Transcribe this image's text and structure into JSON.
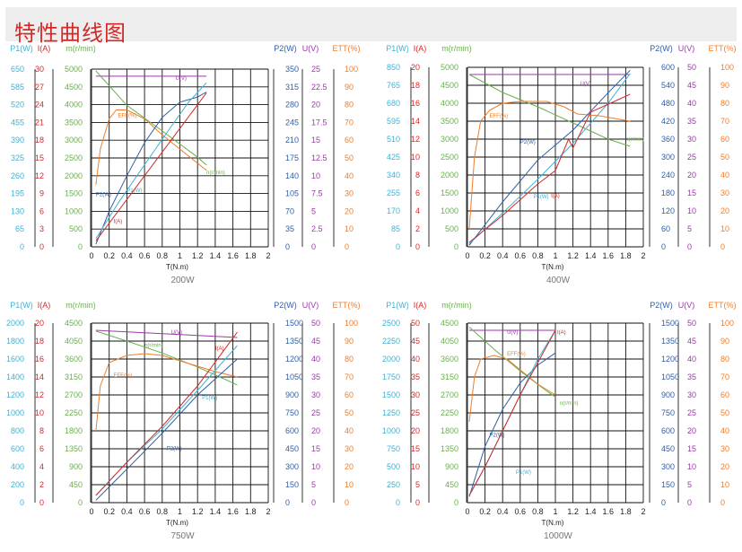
{
  "page": {
    "title": "特性曲线图"
  },
  "colors": {
    "P1": "#3fb3d4",
    "I": "#d42a2a",
    "N": "#6ab04c",
    "P2": "#2f5fa8",
    "U": "#9b3aa8",
    "EFF": "#ef7d2a",
    "grid": "#111111",
    "title": "#d12a2a"
  },
  "chart_data": [
    {
      "type": "line",
      "caption": "200W",
      "xlabel": "T(N.m)",
      "x_ticks": [
        "0",
        "0.2",
        "0.4",
        "0.6",
        "0.8",
        "1",
        "1.2",
        "1.4",
        "1.6",
        "1.8",
        "2"
      ],
      "xlim": [
        0,
        2
      ],
      "axes": [
        {
          "key": "P1",
          "label": "P1(W)",
          "ticks": [
            "650",
            "585",
            "520",
            "455",
            "390",
            "325",
            "260",
            "195",
            "130",
            "65",
            "0"
          ],
          "max": 650
        },
        {
          "key": "I",
          "label": "I(A)",
          "ticks": [
            "30",
            "27",
            "24",
            "21",
            "18",
            "15",
            "12",
            "9",
            "6",
            "3",
            "0"
          ],
          "max": 30
        },
        {
          "key": "N",
          "label": "m(r/min)",
          "ticks": [
            "5000",
            "4500",
            "4000",
            "3500",
            "3000",
            "2500",
            "2000",
            "1500",
            "1000",
            "500",
            "0"
          ],
          "max": 5000
        },
        {
          "key": "P2",
          "label": "P2(W)",
          "ticks": [
            "350",
            "315",
            "280",
            "245",
            "210",
            "175",
            "140",
            "105",
            "70",
            "35",
            "0"
          ],
          "max": 350
        },
        {
          "key": "U",
          "label": "U(V)",
          "ticks": [
            "25",
            "22.5",
            "20",
            "17.5",
            "15",
            "12.5",
            "10",
            "7.5",
            "5",
            "2.5",
            "0"
          ],
          "max": 25
        },
        {
          "key": "EFF",
          "label": "ETT(%)",
          "ticks": [
            "100",
            "90",
            "80",
            "70",
            "60",
            "50",
            "40",
            "30",
            "20",
            "10",
            "0"
          ],
          "max": 100
        }
      ],
      "series": [
        {
          "name": "U(V)",
          "axis": "U",
          "label_at": [
            0.95,
            23.5
          ],
          "x": [
            0.05,
            1.3
          ],
          "y": [
            24,
            24
          ]
        },
        {
          "name": "n(r/min)",
          "axis": "N",
          "label_at": [
            1.3,
            2050
          ],
          "x": [
            0.05,
            0.4,
            0.8,
            1.2,
            1.3
          ],
          "y": [
            4950,
            3980,
            3260,
            2520,
            2300
          ]
        },
        {
          "name": "EFF(%)",
          "axis": "EFF",
          "label_at": [
            0.3,
            73
          ],
          "x": [
            0.05,
            0.1,
            0.2,
            0.28,
            0.4,
            0.6,
            0.8,
            1.0,
            1.2,
            1.3
          ],
          "y": [
            35,
            55,
            72,
            77,
            77,
            72,
            63,
            55,
            47,
            43
          ]
        },
        {
          "name": "P2(W)",
          "axis": "P2",
          "label_at": [
            0.05,
            100
          ],
          "x": [
            0.05,
            0.2,
            0.4,
            0.6,
            0.8,
            1.0,
            1.2,
            1.3
          ],
          "y": [
            5,
            70,
            140,
            205,
            255,
            285,
            295,
            305
          ]
        },
        {
          "name": "P1(W)",
          "axis": "P1",
          "label_at": [
            0.4,
            200
          ],
          "x": [
            0.05,
            0.3,
            0.6,
            0.9,
            1.1,
            1.3
          ],
          "y": [
            30,
            160,
            300,
            440,
            530,
            600
          ]
        },
        {
          "name": "I(A)",
          "axis": "I",
          "label_at": [
            0.25,
            4
          ],
          "x": [
            0.05,
            0.3,
            0.6,
            0.9,
            1.1,
            1.3
          ],
          "y": [
            1,
            6,
            12,
            18,
            22,
            26
          ]
        }
      ]
    },
    {
      "type": "line",
      "caption": "400W",
      "xlabel": "T(N.m)",
      "x_ticks": [
        "0",
        "0.2",
        "0.4",
        "0.6",
        "0.8",
        "1",
        "1.2",
        "1.4",
        "1.6",
        "1.8",
        "2"
      ],
      "xlim": [
        0,
        2
      ],
      "axes": [
        {
          "key": "P1",
          "label": "P1(W)",
          "ticks": [
            "850",
            "765",
            "680",
            "595",
            "510",
            "425",
            "340",
            "255",
            "170",
            "85",
            "0"
          ],
          "max": 850
        },
        {
          "key": "I",
          "label": "I(A)",
          "ticks": [
            "20",
            "18",
            "16",
            "14",
            "12",
            "10",
            "8",
            "6",
            "4",
            "2",
            "0"
          ],
          "max": 20
        },
        {
          "key": "N",
          "label": "m(r/min)",
          "ticks": [
            "5000",
            "4500",
            "4000",
            "3500",
            "3000",
            "2500",
            "2000",
            "1500",
            "1000",
            "500",
            "0"
          ],
          "max": 5000
        },
        {
          "key": "P2",
          "label": "P2(W)",
          "ticks": [
            "600",
            "540",
            "480",
            "420",
            "360",
            "300",
            "240",
            "180",
            "120",
            "60",
            "0"
          ],
          "max": 600
        },
        {
          "key": "U",
          "label": "U(V)",
          "ticks": [
            "50",
            "45",
            "40",
            "35",
            "30",
            "25",
            "20",
            "15",
            "10",
            "5",
            "0"
          ],
          "max": 50
        },
        {
          "key": "EFF",
          "label": "ETT(%)",
          "ticks": [
            "100",
            "90",
            "80",
            "70",
            "60",
            "50",
            "40",
            "30",
            "20",
            "10",
            "0"
          ],
          "max": 100
        }
      ],
      "series": [
        {
          "name": "U(V)",
          "axis": "U",
          "label_at": [
            1.28,
            45
          ],
          "x": [
            0.02,
            1.85
          ],
          "y": [
            48,
            48
          ]
        },
        {
          "name": "n(r/min)",
          "axis": "N",
          "label_at": [
            1.8,
            2950
          ],
          "x": [
            0.02,
            0.4,
            0.8,
            1.2,
            1.6,
            1.85
          ],
          "y": [
            4800,
            4300,
            3900,
            3450,
            3000,
            2800
          ]
        },
        {
          "name": "EFF(%)",
          "axis": "EFF",
          "label_at": [
            0.25,
            72
          ],
          "x": [
            0.02,
            0.08,
            0.15,
            0.25,
            0.4,
            0.6,
            0.9,
            1.1,
            1.25,
            1.5,
            1.85
          ],
          "y": [
            10,
            50,
            70,
            76,
            80,
            81,
            81,
            78,
            74,
            73,
            70
          ]
        },
        {
          "name": "P2(W)",
          "axis": "P2",
          "label_at": [
            0.6,
            345
          ],
          "x": [
            0.02,
            0.4,
            0.8,
            1.2,
            1.6,
            1.85
          ],
          "y": [
            5,
            150,
            290,
            390,
            515,
            590
          ]
        },
        {
          "name": "P1(W)",
          "axis": "P1",
          "label_at": [
            0.75,
            230
          ],
          "x": [
            0.02,
            0.4,
            0.8,
            1.2,
            1.6,
            1.85
          ],
          "y": [
            15,
            160,
            320,
            490,
            680,
            820
          ]
        },
        {
          "name": "I(A)",
          "axis": "I",
          "label_at": [
            0.95,
            5.5
          ],
          "x": [
            0.02,
            0.4,
            0.8,
            1.0,
            1.15,
            1.2,
            1.4,
            1.85
          ],
          "y": [
            0.5,
            3.5,
            7,
            8.5,
            12,
            11,
            15,
            17
          ]
        }
      ]
    },
    {
      "type": "line",
      "caption": "750W",
      "xlabel": "T(N.m)",
      "x_ticks": [
        "0",
        "0.2",
        "0.4",
        "0.6",
        "0.8",
        "1",
        "1.2",
        "1.4",
        "1.6",
        "1.8",
        "2"
      ],
      "xlim": [
        0,
        2
      ],
      "axes": [
        {
          "key": "P1",
          "label": "P1(W)",
          "ticks": [
            "2000",
            "1800",
            "1600",
            "1400",
            "1200",
            "1000",
            "800",
            "600",
            "400",
            "200",
            "0"
          ],
          "max": 2000
        },
        {
          "key": "I",
          "label": "I(A)",
          "ticks": [
            "20",
            "18",
            "16",
            "14",
            "12",
            "10",
            "8",
            "6",
            "4",
            "2",
            "0"
          ],
          "max": 20
        },
        {
          "key": "N",
          "label": "m(r/min)",
          "ticks": [
            "4500",
            "4050",
            "3600",
            "3150",
            "2700",
            "2250",
            "1800",
            "1350",
            "900",
            "450",
            "0"
          ],
          "max": 4500
        },
        {
          "key": "P2",
          "label": "P2(W)",
          "ticks": [
            "1500",
            "1350",
            "1200",
            "1050",
            "900",
            "750",
            "600",
            "450",
            "300",
            "150",
            "0"
          ],
          "max": 1500
        },
        {
          "key": "U",
          "label": "U(V)",
          "ticks": [
            "50",
            "45",
            "40",
            "35",
            "30",
            "25",
            "20",
            "15",
            "10",
            "5",
            "0"
          ],
          "max": 50
        },
        {
          "key": "EFF",
          "label": "ETT(%)",
          "ticks": [
            "100",
            "90",
            "80",
            "70",
            "60",
            "50",
            "40",
            "30",
            "20",
            "10",
            "0"
          ],
          "max": 100
        }
      ],
      "series": [
        {
          "name": "U(V)",
          "axis": "U",
          "label_at": [
            0.9,
            47
          ],
          "x": [
            0.05,
            1.65
          ],
          "y": [
            48,
            46
          ]
        },
        {
          "name": "n(r/min)",
          "axis": "N",
          "label_at": [
            0.6,
            3900
          ],
          "x": [
            0.05,
            0.4,
            0.8,
            1.2,
            1.65
          ],
          "y": [
            4300,
            4050,
            3750,
            3400,
            2950
          ]
        },
        {
          "name": "EFF(%)",
          "axis": "EFF",
          "label_at": [
            0.25,
            70
          ],
          "x": [
            0.05,
            0.1,
            0.2,
            0.4,
            0.6,
            0.8,
            1.0,
            1.2,
            1.4,
            1.65
          ],
          "y": [
            40,
            65,
            78,
            82,
            83,
            82,
            79,
            76,
            73,
            70
          ]
        },
        {
          "name": "P2(W)",
          "axis": "P2",
          "label_at": [
            0.85,
            440
          ],
          "x": [
            0.05,
            0.4,
            0.8,
            1.2,
            1.65
          ],
          "y": [
            20,
            280,
            580,
            900,
            1200
          ]
        },
        {
          "name": "P1(W)",
          "axis": "P1",
          "label_at": [
            1.25,
            1150
          ],
          "x": [
            0.05,
            0.4,
            0.8,
            1.2,
            1.65
          ],
          "y": [
            80,
            450,
            820,
            1250,
            1750
          ]
        },
        {
          "name": "I(A)",
          "axis": "I",
          "label_at": [
            1.4,
            17
          ],
          "x": [
            0.05,
            0.4,
            0.8,
            1.2,
            1.65
          ],
          "y": [
            0.8,
            4.5,
            8.5,
            13,
            19
          ]
        }
      ]
    },
    {
      "type": "line",
      "caption": "1000W",
      "xlabel": "T(N.m)",
      "x_ticks": [
        "0",
        "0.2",
        "0.4",
        "0.6",
        "0.8",
        "1",
        "1.2",
        "1.4",
        "1.6",
        "1.8",
        "2"
      ],
      "xlim": [
        0,
        2
      ],
      "axes": [
        {
          "key": "P1",
          "label": "P1(W)",
          "ticks": [
            "2500",
            "2250",
            "2000",
            "1750",
            "1500",
            "1250",
            "1000",
            "750",
            "500",
            "250",
            "0"
          ],
          "max": 2500
        },
        {
          "key": "I",
          "label": "I(A)",
          "ticks": [
            "50",
            "45",
            "40",
            "35",
            "30",
            "25",
            "20",
            "15",
            "10",
            "5",
            "0"
          ],
          "max": 50
        },
        {
          "key": "N",
          "label": "m(r/min)",
          "ticks": [
            "4500",
            "4050",
            "3600",
            "3150",
            "2700",
            "2250",
            "1800",
            "1350",
            "900",
            "450",
            "0"
          ],
          "max": 4500
        },
        {
          "key": "P2",
          "label": "P2(W)",
          "ticks": [
            "1500",
            "1350",
            "1200",
            "1050",
            "900",
            "750",
            "600",
            "450",
            "300",
            "150",
            "0"
          ],
          "max": 1500
        },
        {
          "key": "U",
          "label": "U(V)",
          "ticks": [
            "50",
            "45",
            "40",
            "35",
            "30",
            "25",
            "20",
            "15",
            "10",
            "5",
            "0"
          ],
          "max": 50
        },
        {
          "key": "EFF",
          "label": "ETT(%)",
          "ticks": [
            "100",
            "90",
            "80",
            "70",
            "60",
            "50",
            "40",
            "30",
            "20",
            "10",
            "0"
          ],
          "max": 100
        }
      ],
      "series": [
        {
          "name": "U(V)",
          "axis": "U",
          "label_at": [
            0.45,
            47
          ],
          "x": [
            0.02,
            1.0
          ],
          "y": [
            48,
            48
          ]
        },
        {
          "name": "n(r/min)",
          "axis": "N",
          "label_at": [
            1.05,
            2450
          ],
          "x": [
            0.02,
            0.3,
            0.6,
            0.9,
            1.0
          ],
          "y": [
            4400,
            3850,
            3300,
            2800,
            2650
          ]
        },
        {
          "name": "EFF(%)",
          "axis": "EFF",
          "label_at": [
            0.45,
            82
          ],
          "x": [
            0.02,
            0.08,
            0.15,
            0.3,
            0.45,
            0.6,
            0.8,
            1.0
          ],
          "y": [
            45,
            70,
            80,
            82,
            80,
            74,
            66,
            60
          ]
        },
        {
          "name": "P2(W)",
          "axis": "P2",
          "label_at": [
            0.25,
            550
          ],
          "x": [
            0.02,
            0.2,
            0.4,
            0.6,
            0.8,
            1.0
          ],
          "y": [
            50,
            470,
            780,
            1000,
            1150,
            1250
          ]
        },
        {
          "name": "P1(W)",
          "axis": "P1",
          "label_at": [
            0.55,
            400
          ],
          "x": [
            0.02,
            0.2,
            0.4,
            0.6,
            0.8,
            1.0
          ],
          "y": [
            100,
            500,
            1000,
            1500,
            2000,
            2400
          ]
        },
        {
          "name": "I(A)",
          "axis": "I",
          "label_at": [
            1.02,
            47
          ],
          "x": [
            0.02,
            0.2,
            0.4,
            0.6,
            0.8,
            1.0
          ],
          "y": [
            2,
            10,
            20,
            30,
            39,
            48
          ]
        }
      ]
    }
  ]
}
